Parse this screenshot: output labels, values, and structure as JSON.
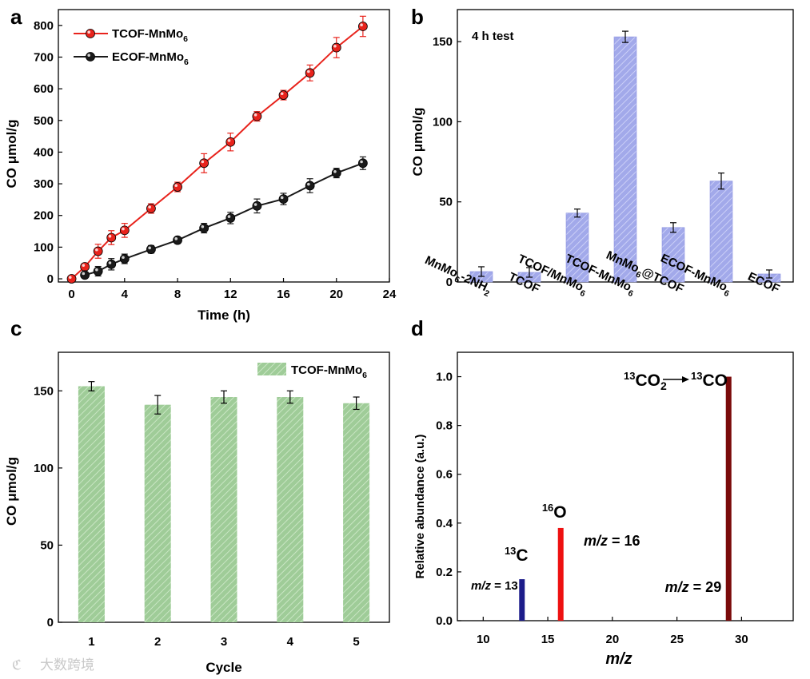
{
  "watermark": "大数跨境",
  "chart_data": [
    {
      "panel": "a",
      "type": "line",
      "xlabel": "Time (h)",
      "ylabel": "CO μmol/g",
      "xlim": [
        -1,
        24
      ],
      "ylim": [
        -10,
        850
      ],
      "xticks": [
        0,
        4,
        8,
        12,
        16,
        20,
        24
      ],
      "yticks": [
        0,
        100,
        200,
        300,
        400,
        500,
        600,
        700,
        800
      ],
      "legend_position": "top-left",
      "series": [
        {
          "name": "TCOF-MnMo6",
          "color": "#e8231c",
          "x": [
            0,
            1,
            2,
            3,
            4,
            6,
            8,
            10,
            12,
            14,
            16,
            18,
            20,
            22
          ],
          "y": [
            0,
            38,
            87,
            130,
            153,
            222,
            290,
            365,
            432,
            513,
            580,
            650,
            730,
            797
          ],
          "err": [
            3,
            10,
            22,
            22,
            22,
            15,
            15,
            30,
            28,
            15,
            15,
            25,
            32,
            32
          ]
        },
        {
          "name": "ECOF-MnMo6",
          "color": "#1a1a1a",
          "x": [
            1,
            2,
            3,
            4,
            6,
            8,
            10,
            12,
            14,
            16,
            18,
            20,
            22
          ],
          "y": [
            12,
            24,
            46,
            63,
            93,
            122,
            160,
            192,
            230,
            252,
            294,
            334,
            365
          ],
          "err": [
            6,
            15,
            18,
            15,
            12,
            10,
            15,
            18,
            22,
            18,
            22,
            15,
            20
          ]
        }
      ]
    },
    {
      "panel": "b",
      "type": "bar",
      "annotation": "4 h test",
      "ylabel": "CO μmol/g",
      "ylim": [
        0,
        170
      ],
      "yticks": [
        0,
        50,
        100,
        150
      ],
      "color": "#a2a9ea",
      "categories": [
        "MnMo6-2NH2",
        "TCOF",
        "TCOF/MnMo6",
        "TCOF-MnMo6",
        "MnMo6@TCOF",
        "ECOF-MnMo6",
        "ECOF"
      ],
      "values": [
        6.5,
        6,
        43,
        153,
        34,
        63,
        5
      ],
      "errors": [
        3,
        3,
        2.5,
        3.5,
        3,
        5,
        2.5
      ]
    },
    {
      "panel": "c",
      "type": "bar",
      "xlabel": "Cycle",
      "ylabel": "CO μmol/g",
      "ylim": [
        0,
        175
      ],
      "yticks": [
        0,
        50,
        100,
        150
      ],
      "color": "#9fcc98",
      "legend_position": "top-right",
      "series_name": "TCOF-MnMo6",
      "categories": [
        "1",
        "2",
        "3",
        "4",
        "5"
      ],
      "values": [
        153,
        141,
        146,
        146,
        142
      ],
      "errors": [
        3,
        6,
        4,
        4,
        4
      ]
    },
    {
      "panel": "d",
      "type": "bar",
      "xlabel": "m/z",
      "ylabel": "Relative abundance (a.u.)",
      "xlim": [
        8,
        34
      ],
      "ylim": [
        0,
        1.1
      ],
      "xticks": [
        10,
        15,
        20,
        25,
        30
      ],
      "yticks": [
        0.0,
        0.2,
        0.4,
        0.6,
        0.8,
        1.0
      ],
      "x": [
        13,
        16,
        29
      ],
      "values": [
        0.17,
        0.38,
        1.0
      ],
      "colors": [
        "#1c1c8a",
        "#ee1111",
        "#7a0a0a"
      ],
      "labels": [
        "m/z = 13",
        "m/z = 16",
        "m/z = 29"
      ],
      "species": [
        "13C",
        "16O"
      ],
      "reaction": "13CO2 → 13CO"
    }
  ]
}
